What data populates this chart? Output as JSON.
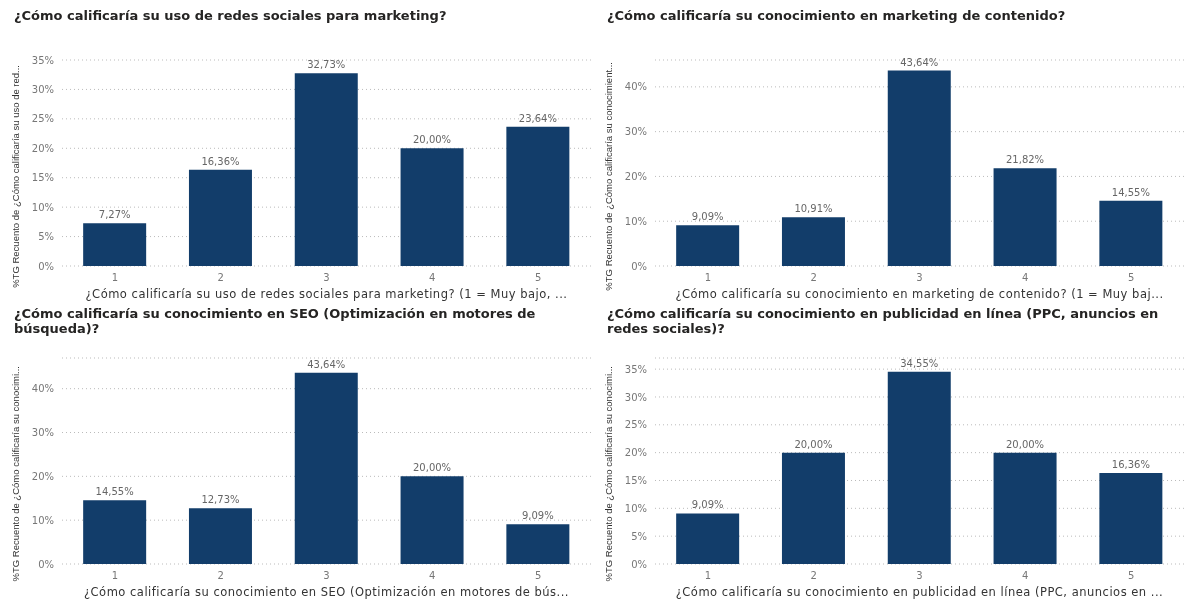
{
  "chart_data": [
    {
      "type": "bar",
      "title": "¿Cómo calificaría su uso de redes sociales para marketing?",
      "xlabel": "¿Cómo calificaría su uso de redes sociales para marketing? (1 = Muy bajo, ...",
      "ylabel": "%TG Recuento de ¿Cómo calificaría su uso de red...",
      "categories": [
        "1",
        "2",
        "3",
        "4",
        "5"
      ],
      "values": [
        7.27,
        16.36,
        32.73,
        20.0,
        23.64
      ],
      "value_labels": [
        "7,27%",
        "16,36%",
        "32,73%",
        "20,00%",
        "23,64%"
      ],
      "color": "#123d6a",
      "ylim": [
        0,
        35
      ],
      "yticks": [
        {
          "value": 0,
          "label": "0%"
        },
        {
          "value": 5,
          "label": "5%"
        },
        {
          "value": 10,
          "label": "10%"
        },
        {
          "value": 15,
          "label": "15%"
        },
        {
          "value": 20,
          "label": "20%"
        },
        {
          "value": 25,
          "label": "25%"
        },
        {
          "value": 30,
          "label": "30%"
        },
        {
          "value": 35,
          "label": "35%"
        }
      ],
      "grid": "y"
    },
    {
      "type": "bar",
      "title": "¿Cómo calificaría su conocimiento en marketing de contenido?",
      "xlabel": "¿Cómo calificaría su conocimiento en marketing de contenido? (1 = Muy baj...",
      "ylabel": "%TG Recuento de ¿Cómo calificaría su conocimient...",
      "categories": [
        "1",
        "2",
        "3",
        "4",
        "5"
      ],
      "values": [
        9.09,
        10.91,
        43.64,
        21.82,
        14.55
      ],
      "value_labels": [
        "9,09%",
        "10,91%",
        "43,64%",
        "21,82%",
        "14,55%"
      ],
      "color": "#123d6a",
      "ylim": [
        0,
        46
      ],
      "yticks": [
        {
          "value": 0,
          "label": "0%"
        },
        {
          "value": 10,
          "label": "10%"
        },
        {
          "value": 20,
          "label": "20%"
        },
        {
          "value": 30,
          "label": "30%"
        },
        {
          "value": 40,
          "label": "40%"
        }
      ],
      "grid": "y"
    },
    {
      "type": "bar",
      "title": "¿Cómo calificaría su conocimiento en SEO (Optimización en motores de búsqueda)?",
      "xlabel": "¿Cómo calificaría su conocimiento en SEO (Optimización en motores de bús...",
      "ylabel": "%TG Recuento de ¿Cómo calificaría su conocimi...",
      "categories": [
        "1",
        "2",
        "3",
        "4",
        "5"
      ],
      "values": [
        14.55,
        12.73,
        43.64,
        20.0,
        9.09
      ],
      "value_labels": [
        "14,55%",
        "12,73%",
        "43,64%",
        "20,00%",
        "9,09%"
      ],
      "color": "#123d6a",
      "ylim": [
        0,
        47
      ],
      "yticks": [
        {
          "value": 0,
          "label": "0%"
        },
        {
          "value": 10,
          "label": "10%"
        },
        {
          "value": 20,
          "label": "20%"
        },
        {
          "value": 30,
          "label": "30%"
        },
        {
          "value": 40,
          "label": "40%"
        }
      ],
      "grid": "y"
    },
    {
      "type": "bar",
      "title": "¿Cómo calificaría su conocimiento en publicidad en línea (PPC, anuncios en redes sociales)?",
      "xlabel": "¿Cómo calificaría su conocimiento en publicidad en línea (PPC, anuncios en ...",
      "ylabel": "%TG Recuento de ¿Cómo calificaría su conocimi...",
      "categories": [
        "1",
        "2",
        "3",
        "4",
        "5"
      ],
      "values": [
        9.09,
        20.0,
        34.55,
        20.0,
        16.36
      ],
      "value_labels": [
        "9,09%",
        "20,00%",
        "34,55%",
        "20,00%",
        "16,36%"
      ],
      "color": "#123d6a",
      "ylim": [
        0,
        37
      ],
      "yticks": [
        {
          "value": 0,
          "label": "0%"
        },
        {
          "value": 5,
          "label": "5%"
        },
        {
          "value": 10,
          "label": "10%"
        },
        {
          "value": 15,
          "label": "15%"
        },
        {
          "value": 20,
          "label": "20%"
        },
        {
          "value": 25,
          "label": "25%"
        },
        {
          "value": 30,
          "label": "30%"
        },
        {
          "value": 35,
          "label": "35%"
        }
      ],
      "grid": "y"
    }
  ]
}
